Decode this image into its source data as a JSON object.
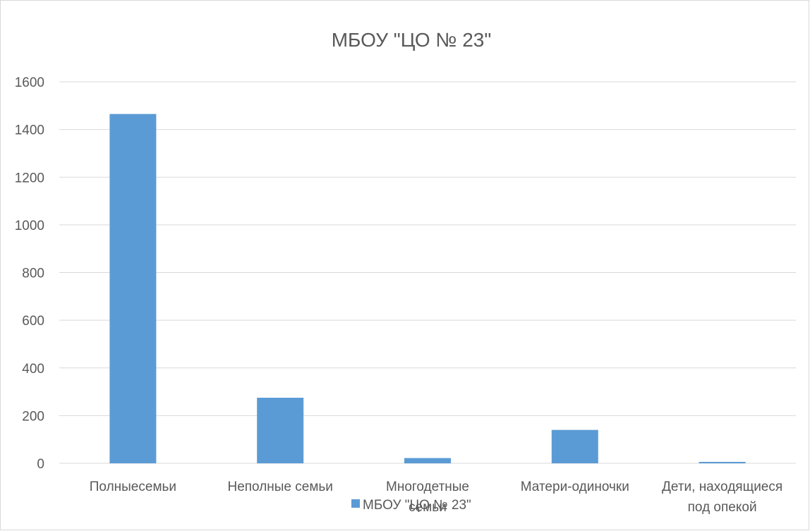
{
  "chart_data": {
    "type": "bar",
    "title": "МБОУ \"ЦО № 23\"",
    "categories": [
      [
        "Полныесемьи"
      ],
      [
        "Неполные семьи"
      ],
      [
        "Многодетные",
        "семьи"
      ],
      [
        "Матери-одиночки"
      ],
      [
        "Дети, находящиеся",
        "под опекой"
      ]
    ],
    "series": [
      {
        "name": "МБОУ \"ЦО № 23\"",
        "values": [
          1465,
          275,
          22,
          140,
          6
        ],
        "color": "#5b9bd5"
      }
    ],
    "ylim": [
      0,
      1600
    ],
    "yticks": [
      0,
      200,
      400,
      600,
      800,
      1000,
      1200,
      1400,
      1600
    ],
    "grid": true,
    "legend_position": "bottom",
    "colors": {
      "gridline": "#d9d9d9",
      "text": "#595959",
      "border": "#d9d9d9"
    }
  }
}
